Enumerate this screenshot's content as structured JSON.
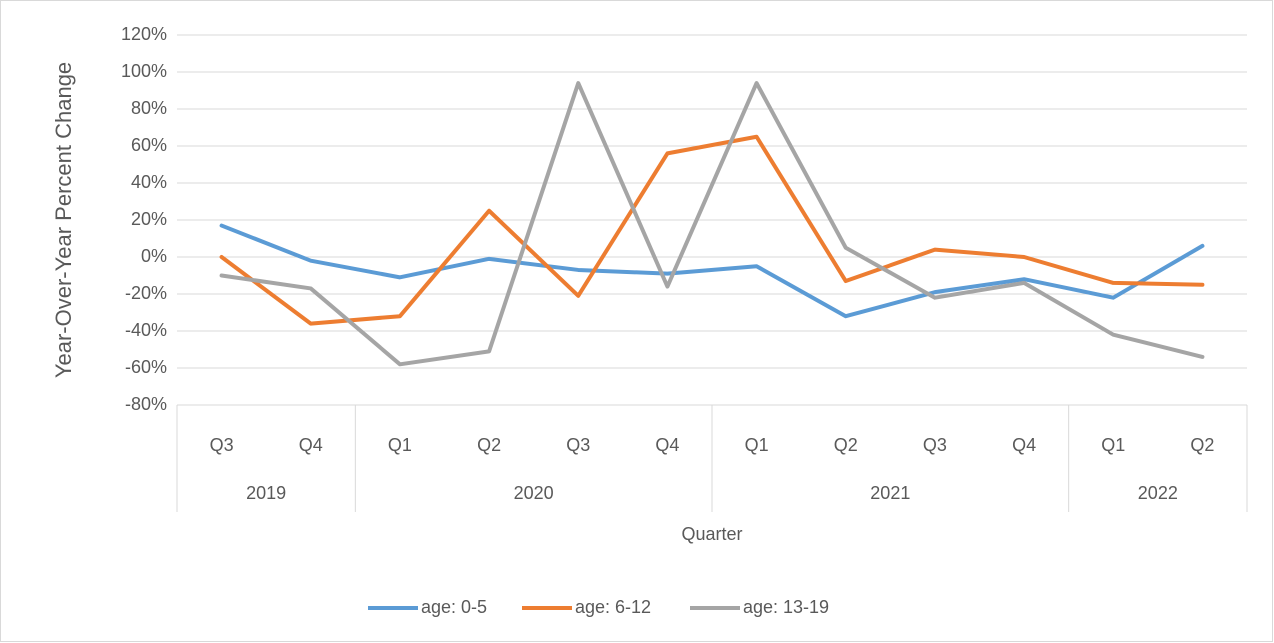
{
  "chart_data": {
    "type": "line",
    "y_label": "Year-Over-Year Percent Change",
    "x_label": "Quarter",
    "category_groups": [
      {
        "label": "2019",
        "categories": [
          "Q3",
          "Q4"
        ]
      },
      {
        "label": "2020",
        "categories": [
          "Q1",
          "Q2",
          "Q3",
          "Q4"
        ]
      },
      {
        "label": "2021",
        "categories": [
          "Q1",
          "Q2",
          "Q3",
          "Q4"
        ]
      },
      {
        "label": "2022",
        "categories": [
          "Q1",
          "Q2"
        ]
      }
    ],
    "series": [
      {
        "name": "age: 0-5",
        "color": "#5b9bd5",
        "values": [
          17,
          -2,
          -11,
          -1,
          -7,
          -9,
          -5,
          -32,
          -19,
          -12,
          -22,
          6
        ]
      },
      {
        "name": "age: 6-12",
        "color": "#ed7d31",
        "values": [
          0,
          -36,
          -32,
          25,
          -21,
          56,
          65,
          -13,
          4,
          0,
          -14,
          -15
        ]
      },
      {
        "name": "age: 13-19",
        "color": "#a5a5a5",
        "values": [
          -10,
          -17,
          -58,
          -51,
          94,
          -16,
          94,
          5,
          -22,
          -14,
          -42,
          -54
        ]
      }
    ],
    "ylim": [
      -80,
      120
    ],
    "yticks": [
      {
        "value": -80,
        "label": "-80%"
      },
      {
        "value": -60,
        "label": "-60%"
      },
      {
        "value": -40,
        "label": "-40%"
      },
      {
        "value": -20,
        "label": "-20%"
      },
      {
        "value": 0,
        "label": "0%"
      },
      {
        "value": 20,
        "label": "20%"
      },
      {
        "value": 40,
        "label": "40%"
      },
      {
        "value": 60,
        "label": "60%"
      },
      {
        "value": 80,
        "label": "80%"
      },
      {
        "value": 100,
        "label": "100%"
      },
      {
        "value": 120,
        "label": "120%"
      }
    ],
    "grid": true,
    "legend": "bottom"
  }
}
